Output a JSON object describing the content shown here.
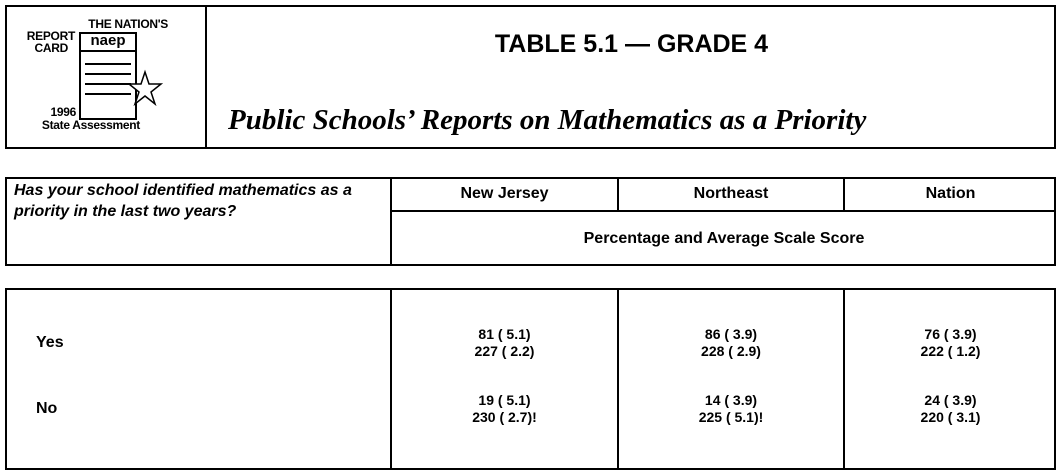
{
  "header": {
    "logo": {
      "line1": "THE NATION'S",
      "line2": "REPORT",
      "line3": "CARD",
      "mark": "naep",
      "year": "1996",
      "caption": "State Assessment"
    },
    "title": "TABLE 5.1 — GRADE 4",
    "subtitle": "Public Schools’ Reports on Mathematics as a Priority"
  },
  "table": {
    "question": "Has your school identified mathematics as a priority in the last two years?",
    "columns": [
      "New Jersey",
      "Northeast",
      "Nation"
    ],
    "subheader": "Percentage and Average Scale Score",
    "rows": [
      {
        "label": "Yes",
        "cells": [
          [
            "81 ( 5.1)",
            "227 ( 2.2)"
          ],
          [
            "86 ( 3.9)",
            "228 ( 2.9)"
          ],
          [
            "76 ( 3.9)",
            "222 ( 1.2)"
          ]
        ]
      },
      {
        "label": "No",
        "cells": [
          [
            "19 ( 5.1)",
            "230 ( 2.7)!"
          ],
          [
            "14 ( 3.9)",
            "225 ( 5.1)!"
          ],
          [
            "24 ( 3.9)",
            "220 ( 3.1)"
          ]
        ]
      }
    ]
  }
}
